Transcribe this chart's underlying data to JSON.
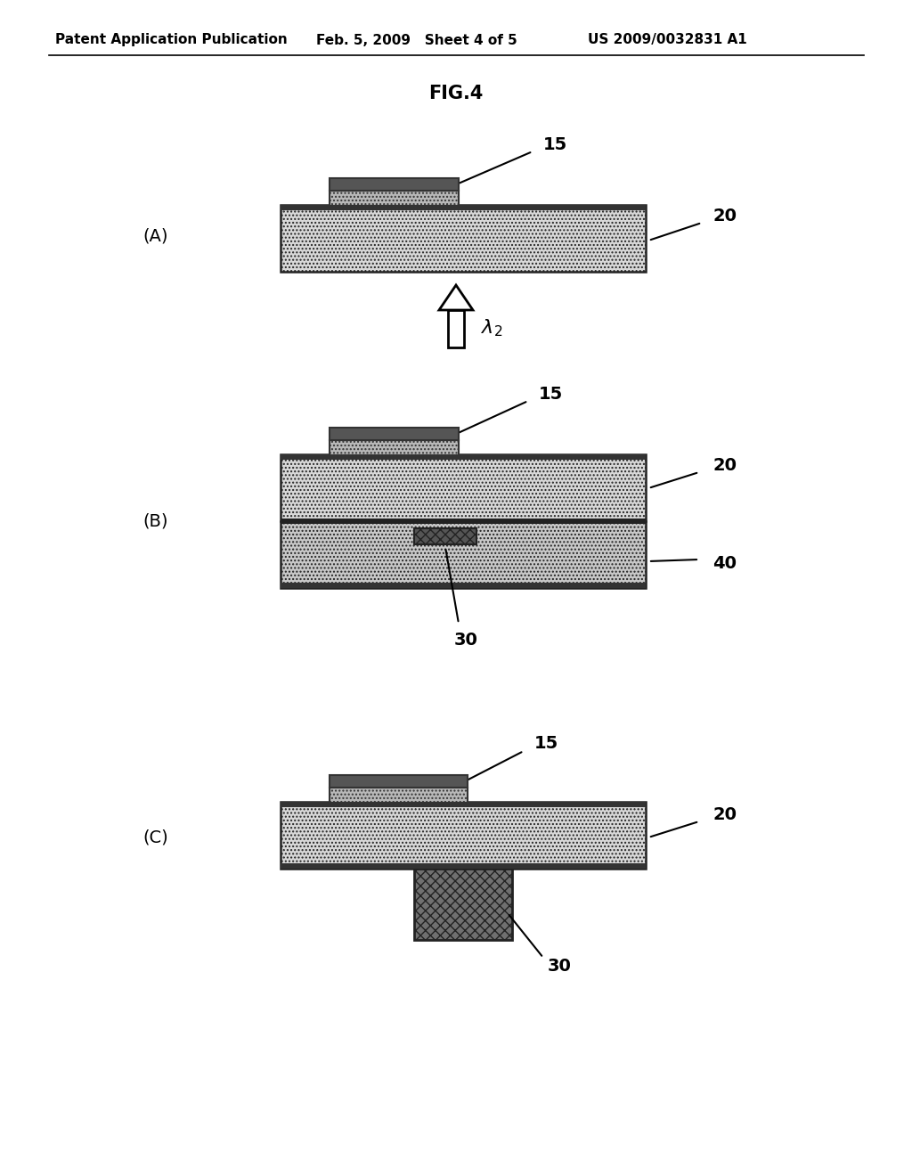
{
  "title": "FIG.4",
  "header_left": "Patent Application Publication",
  "header_mid": "Feb. 5, 2009   Sheet 4 of 5",
  "header_right": "US 2009/0032831 A1",
  "bg_color": "#ffffff",
  "panel_A_label": "(A)",
  "panel_B_label": "(B)",
  "panel_C_label": "(C)",
  "label_15": "15",
  "label_20": "20",
  "label_30": "30",
  "label_40": "40"
}
